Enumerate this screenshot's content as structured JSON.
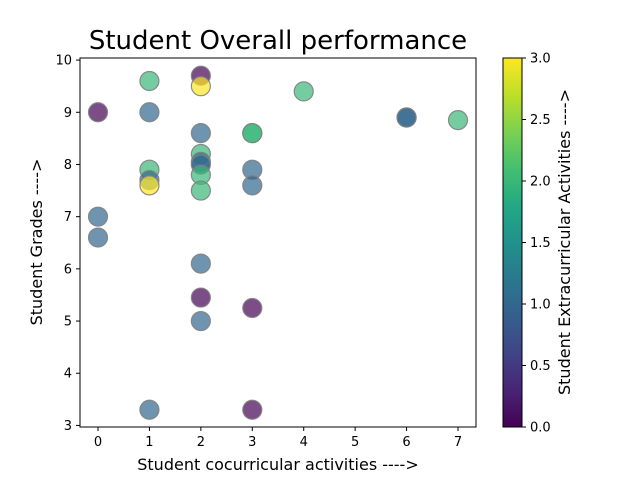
{
  "chart_data": {
    "type": "scatter",
    "title": "Student Overall performance",
    "xlabel": "Student cocurricular activities ---->",
    "ylabel": "Student Grades ---->",
    "colorbar_label": "Student Extracurricular Activities ---->",
    "xlim": [
      -0.35,
      7.35
    ],
    "ylim": [
      2.97,
      10.04
    ],
    "xticks": [
      0,
      1,
      2,
      3,
      4,
      5,
      6,
      7
    ],
    "yticks": [
      3,
      4,
      5,
      6,
      7,
      8,
      9,
      10
    ],
    "clim": [
      0,
      3
    ],
    "cticks": [
      "0.0",
      "0.5",
      "1.0",
      "1.5",
      "2.0",
      "2.5",
      "3.0"
    ],
    "colormap": "viridis",
    "marker_alpha": 0.7,
    "marker_edge_color": "#808080",
    "grid": false,
    "points": [
      {
        "x": 0,
        "y": 9.0,
        "c": 0
      },
      {
        "x": 0,
        "y": 7.0,
        "c": 1
      },
      {
        "x": 0,
        "y": 6.6,
        "c": 1
      },
      {
        "x": 1,
        "y": 9.6,
        "c": 2
      },
      {
        "x": 1,
        "y": 9.0,
        "c": 1
      },
      {
        "x": 1,
        "y": 7.9,
        "c": 2
      },
      {
        "x": 1,
        "y": 7.7,
        "c": 1
      },
      {
        "x": 1,
        "y": 7.6,
        "c": 3
      },
      {
        "x": 1,
        "y": 3.3,
        "c": 1
      },
      {
        "x": 2,
        "y": 9.7,
        "c": 0
      },
      {
        "x": 2,
        "y": 9.5,
        "c": 3
      },
      {
        "x": 2,
        "y": 8.6,
        "c": 1
      },
      {
        "x": 2,
        "y": 8.2,
        "c": 2
      },
      {
        "x": 2,
        "y": 8.05,
        "c": 1
      },
      {
        "x": 2,
        "y": 8.0,
        "c": 1
      },
      {
        "x": 2,
        "y": 7.8,
        "c": 2
      },
      {
        "x": 2,
        "y": 7.5,
        "c": 2
      },
      {
        "x": 2,
        "y": 6.1,
        "c": 1
      },
      {
        "x": 2,
        "y": 5.45,
        "c": 0
      },
      {
        "x": 2,
        "y": 5.0,
        "c": 1
      },
      {
        "x": 3,
        "y": 8.6,
        "c": 2
      },
      {
        "x": 3,
        "y": 8.6,
        "c": 2
      },
      {
        "x": 3,
        "y": 7.9,
        "c": 1
      },
      {
        "x": 3,
        "y": 7.6,
        "c": 1
      },
      {
        "x": 3,
        "y": 5.25,
        "c": 0
      },
      {
        "x": 3,
        "y": 3.3,
        "c": 0
      },
      {
        "x": 4,
        "y": 9.4,
        "c": 2
      },
      {
        "x": 6,
        "y": 8.9,
        "c": 1
      },
      {
        "x": 6,
        "y": 8.9,
        "c": 1
      },
      {
        "x": 7,
        "y": 8.85,
        "c": 2
      }
    ]
  }
}
